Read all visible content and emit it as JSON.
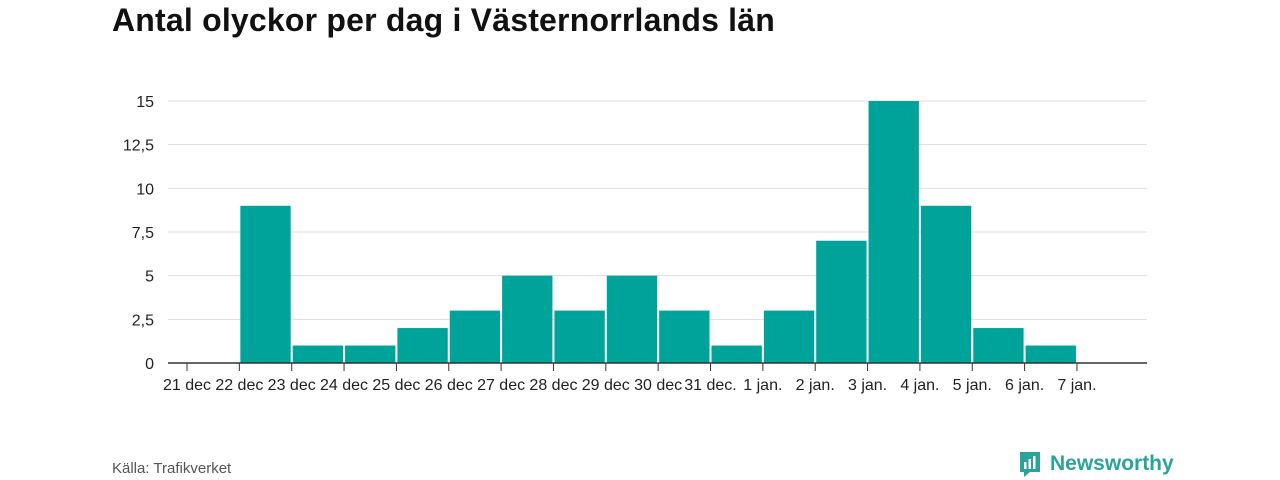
{
  "title": "Antal olyckor per dag i Västernorrlands län",
  "source": "Källa: Trafikverket",
  "brand": {
    "name": "Newsworthy",
    "icon": "newsworthy-logo-icon",
    "color": "#2aa39a"
  },
  "chart_data": {
    "type": "bar",
    "title": "Antal olyckor per dag i Västernorrlands län",
    "categories": [
      "21 dec",
      "22 dec",
      "23 dec",
      "24 dec",
      "25 dec",
      "26 dec",
      "27 dec",
      "28 dec",
      "29 dec",
      "30 dec",
      "31 dec.",
      "1 jan.",
      "2 jan.",
      "3 jan.",
      "4 jan.",
      "5 jan.",
      "6 jan.",
      "7 jan."
    ],
    "values": [
      0,
      9,
      1,
      1,
      2,
      3,
      5,
      3,
      5,
      3,
      1,
      3,
      7,
      15,
      9,
      2,
      1,
      0
    ],
    "yticks": [
      "0",
      "2,5",
      "5",
      "7,5",
      "10",
      "12,5",
      "15"
    ],
    "ylim": [
      0,
      15
    ],
    "xlabel": "",
    "ylabel": "",
    "grid": true,
    "bar_color": "#00a39a"
  }
}
